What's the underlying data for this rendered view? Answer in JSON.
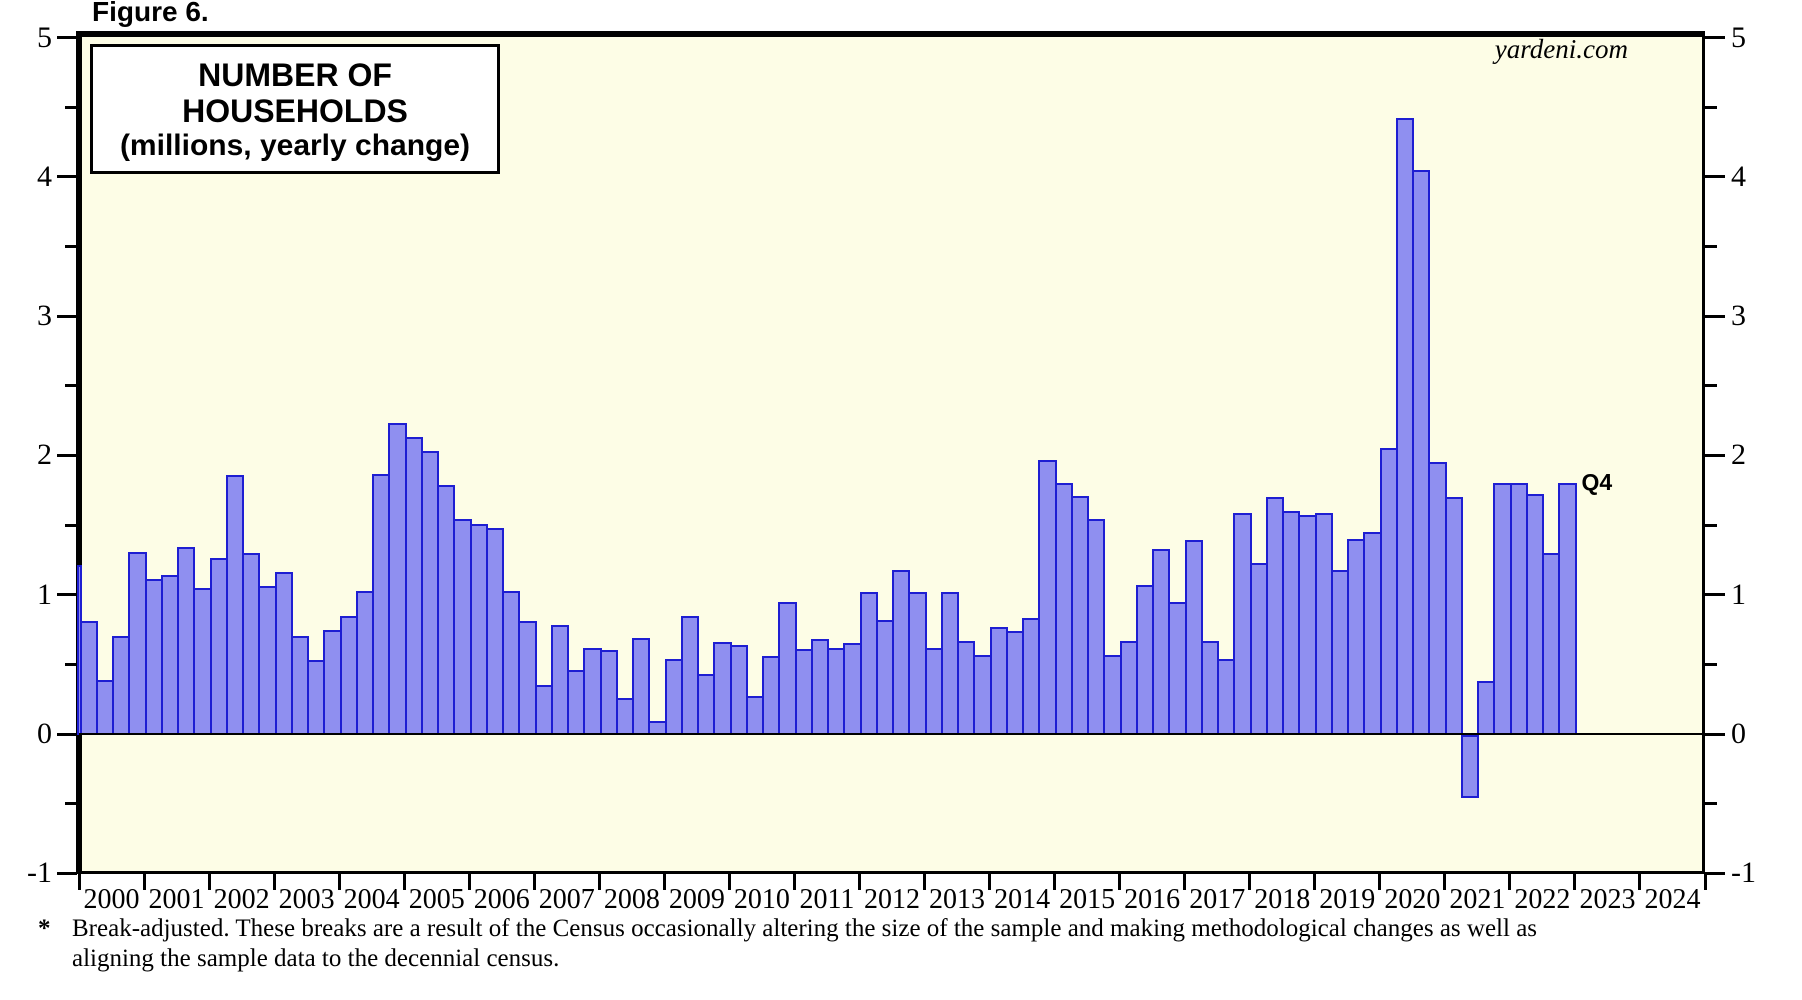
{
  "figure_label": "Figure 6.",
  "watermark": "yardeni.com",
  "title": {
    "line1": "NUMBER OF HOUSEHOLDS",
    "line2": "(millions, yearly change)"
  },
  "annotation_q4": "Q4",
  "footnote": {
    "marker": "*",
    "line1": "Break-adjusted. These breaks are a result of the Census occasionally altering the size of the sample and making methodological changes as well as",
    "line2": "aligning the sample data to the decennial census."
  },
  "colors": {
    "plot_bg": "#FDFDE6",
    "bar_fill": "#8F8FF0",
    "bar_border": "#1E1ED2",
    "frame": "#000000",
    "text": "#000000"
  },
  "chart_data": {
    "type": "bar",
    "title": "NUMBER OF HOUSEHOLDS",
    "subtitle": "(millions, yearly change)",
    "ylabel": "millions, yearly change",
    "ylim": [
      -1,
      5
    ],
    "y_major_ticks": [
      5,
      4,
      3,
      2,
      1,
      0,
      -1
    ],
    "y_minor_ticks": [
      4.5,
      3.5,
      2.5,
      1.5,
      0.5,
      -0.5
    ],
    "grid": false,
    "legend": false,
    "x_year_labels": [
      "2000",
      "2001",
      "2002",
      "2003",
      "2004",
      "2005",
      "2006",
      "2007",
      "2008",
      "2009",
      "2010",
      "2011",
      "2012",
      "2013",
      "2014",
      "2015",
      "2016",
      "2017",
      "2018",
      "2019",
      "2020",
      "2021",
      "2022",
      "2023",
      "2024"
    ],
    "data_start": "2000 Q1",
    "data_end": "2022 Q4",
    "leading_partial_bar": {
      "quarter": "1999 Q4",
      "value": 1.21,
      "note": "clipped at left frame edge"
    },
    "quarterly_values": [
      0.81,
      0.39,
      0.7,
      1.31,
      1.11,
      1.14,
      1.34,
      1.05,
      1.26,
      1.86,
      1.3,
      1.06,
      1.16,
      0.7,
      0.53,
      0.75,
      0.85,
      1.03,
      1.87,
      2.23,
      2.13,
      2.03,
      1.79,
      1.54,
      1.51,
      1.48,
      1.03,
      0.81,
      0.35,
      0.78,
      0.46,
      0.62,
      0.6,
      0.26,
      0.69,
      0.09,
      0.54,
      0.85,
      0.43,
      0.66,
      0.64,
      0.27,
      0.56,
      0.95,
      0.61,
      0.68,
      0.62,
      0.65,
      1.02,
      0.82,
      1.18,
      1.02,
      0.62,
      1.02,
      0.67,
      0.57,
      0.77,
      0.74,
      0.83,
      1.97,
      1.8,
      1.71,
      1.54,
      0.57,
      0.67,
      1.07,
      1.33,
      0.95,
      1.39,
      0.67,
      0.54,
      1.59,
      1.23,
      1.7,
      1.6,
      1.57,
      1.59,
      1.18,
      1.4,
      1.45,
      2.05,
      4.42,
      4.05,
      1.95,
      1.7,
      -0.45,
      0.38,
      1.8,
      1.8,
      1.72,
      1.3,
      1.8
    ],
    "last_bar_annotation": "Q4"
  }
}
